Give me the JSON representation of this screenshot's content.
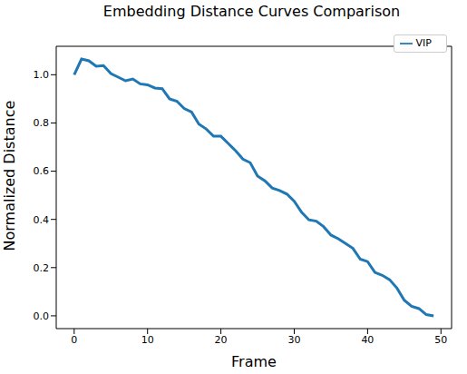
{
  "chart_data": {
    "type": "line",
    "title": "Embedding Distance Curves Comparison",
    "x_label": "Frame",
    "y_label": "Normalized Distance",
    "x": [
      0,
      1,
      2,
      3,
      4,
      5,
      6,
      7,
      8,
      9,
      10,
      11,
      12,
      13,
      14,
      15,
      16,
      17,
      18,
      19,
      20,
      21,
      22,
      23,
      24,
      25,
      26,
      27,
      28,
      29,
      30,
      31,
      32,
      33,
      34,
      35,
      36,
      37,
      38,
      39,
      40,
      41,
      42,
      43,
      44,
      45,
      46,
      47,
      48,
      49
    ],
    "series": [
      {
        "name": "VIP",
        "color": "#1f77b4",
        "values": [
          1.0,
          1.065,
          1.058,
          1.035,
          1.038,
          1.005,
          0.99,
          0.975,
          0.982,
          0.962,
          0.958,
          0.945,
          0.942,
          0.9,
          0.89,
          0.86,
          0.845,
          0.795,
          0.775,
          0.745,
          0.745,
          0.715,
          0.685,
          0.65,
          0.635,
          0.58,
          0.56,
          0.53,
          0.52,
          0.505,
          0.475,
          0.43,
          0.398,
          0.393,
          0.37,
          0.335,
          0.32,
          0.3,
          0.28,
          0.235,
          0.225,
          0.18,
          0.168,
          0.15,
          0.115,
          0.065,
          0.04,
          0.03,
          0.005,
          0.0
        ]
      }
    ],
    "xlim": [
      -2.45,
      51.45
    ],
    "ylim": [
      -0.053,
      1.118
    ],
    "xticks": [
      0,
      10,
      20,
      30,
      40,
      50
    ],
    "yticks": [
      {
        "value": 0,
        "label": "0.0"
      },
      {
        "value": 0.2,
        "label": "0.2"
      },
      {
        "value": 0.4,
        "label": "0.4"
      },
      {
        "value": 0.6,
        "label": "0.6"
      },
      {
        "value": 0.8,
        "label": "0.8"
      },
      {
        "value": 1.0,
        "label": "1.0"
      }
    ],
    "legend": "upper right"
  }
}
